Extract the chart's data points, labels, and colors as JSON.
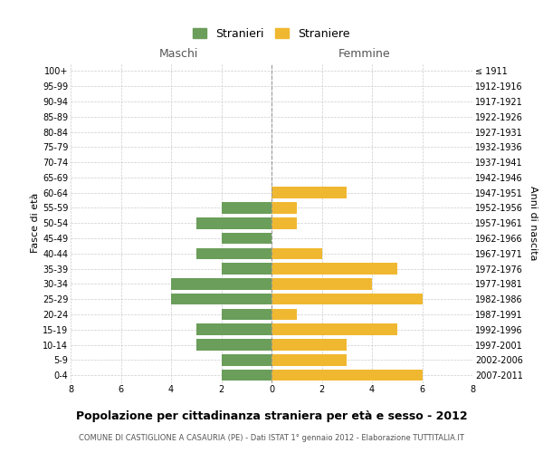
{
  "age_groups": [
    "100+",
    "95-99",
    "90-94",
    "85-89",
    "80-84",
    "75-79",
    "70-74",
    "65-69",
    "60-64",
    "55-59",
    "50-54",
    "45-49",
    "40-44",
    "35-39",
    "30-34",
    "25-29",
    "20-24",
    "15-19",
    "10-14",
    "5-9",
    "0-4"
  ],
  "birth_years": [
    "≤ 1911",
    "1912-1916",
    "1917-1921",
    "1922-1926",
    "1927-1931",
    "1932-1936",
    "1937-1941",
    "1942-1946",
    "1947-1951",
    "1952-1956",
    "1957-1961",
    "1962-1966",
    "1967-1971",
    "1972-1976",
    "1977-1981",
    "1982-1986",
    "1987-1991",
    "1992-1996",
    "1997-2001",
    "2002-2006",
    "2007-2011"
  ],
  "maschi": [
    0,
    0,
    0,
    0,
    0,
    0,
    0,
    0,
    0,
    2,
    3,
    2,
    3,
    2,
    4,
    4,
    2,
    3,
    3,
    2,
    2
  ],
  "femmine": [
    0,
    0,
    0,
    0,
    0,
    0,
    0,
    0,
    3,
    1,
    1,
    0,
    2,
    5,
    4,
    6,
    1,
    5,
    3,
    3,
    6
  ],
  "maschi_color": "#6a9e5a",
  "femmine_color": "#f0b830",
  "title": "Popolazione per cittadinanza straniera per età e sesso - 2012",
  "subtitle": "COMUNE DI CASTIGLIONE A CASAURIA (PE) - Dati ISTAT 1° gennaio 2012 - Elaborazione TUTTITALIA.IT",
  "xlabel_left": "Maschi",
  "xlabel_right": "Femmine",
  "ylabel_left": "Fasce di età",
  "ylabel_right": "Anni di nascita",
  "legend_stranieri": "Stranieri",
  "legend_straniere": "Straniere",
  "xlim": 8,
  "background_color": "#ffffff",
  "grid_color": "#cccccc"
}
